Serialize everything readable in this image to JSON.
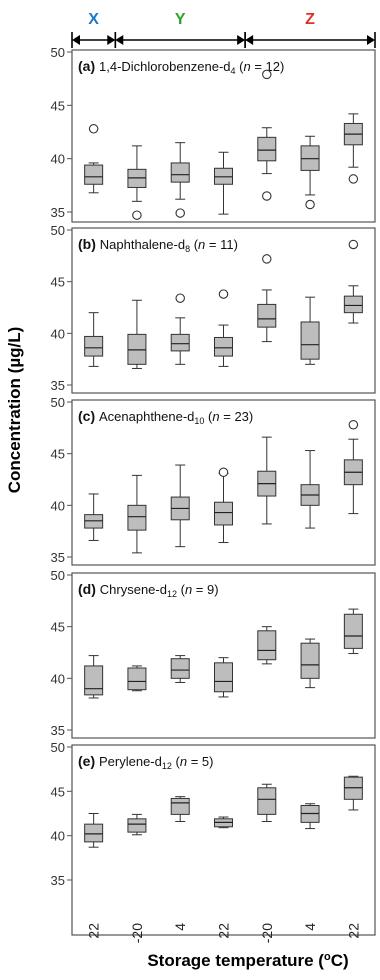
{
  "figure": {
    "ylabel": "Concentration (µg/L)",
    "xlabel": "Storage temperature (°C)",
    "xlabel_display": "Storage temperature (",
    "xlabel_unit_sup": "o",
    "xlabel_unit_tail": "C)",
    "x_tick_labels": [
      "22",
      "-20",
      "4",
      "22",
      "-20",
      "4",
      "22"
    ],
    "groups": [
      {
        "label": "X",
        "color": "#1f78c8",
        "from": 0,
        "to": 0
      },
      {
        "label": "Y",
        "color": "#2aa52a",
        "from": 1,
        "to": 3
      },
      {
        "label": "Z",
        "color": "#e0302a",
        "from": 4,
        "to": 6
      }
    ]
  },
  "chart_data": [
    {
      "type": "box",
      "letter": "(a)",
      "compound": "1,4-Dichlorobenzene-d",
      "subscript": "4",
      "n_prefix": "(",
      "n_var": "n",
      "n_suffix": " = 12)",
      "ylim": [
        35,
        50
      ],
      "yticks": [
        35,
        40,
        45,
        50
      ],
      "boxes": [
        {
          "whislo": 36.8,
          "q1": 37.6,
          "med": 38.3,
          "q3": 39.4,
          "whishi": 39.6,
          "fliers": [
            42.8
          ]
        },
        {
          "whislo": 36.0,
          "q1": 37.3,
          "med": 38.2,
          "q3": 39.0,
          "whishi": 41.2,
          "fliers": [
            34.7
          ]
        },
        {
          "whislo": 36.2,
          "q1": 37.8,
          "med": 38.5,
          "q3": 39.6,
          "whishi": 41.5,
          "fliers": [
            34.9
          ]
        },
        {
          "whislo": 34.8,
          "q1": 37.6,
          "med": 38.3,
          "q3": 39.1,
          "whishi": 40.6,
          "fliers": []
        },
        {
          "whislo": 38.6,
          "q1": 39.8,
          "med": 40.8,
          "q3": 42.0,
          "whishi": 42.9,
          "fliers": [
            47.9,
            36.5
          ]
        },
        {
          "whislo": 36.6,
          "q1": 38.9,
          "med": 40.0,
          "q3": 41.2,
          "whishi": 42.1,
          "fliers": [
            35.7
          ]
        },
        {
          "whislo": 39.2,
          "q1": 41.3,
          "med": 42.3,
          "q3": 43.3,
          "whishi": 44.2,
          "fliers": [
            38.1
          ]
        }
      ]
    },
    {
      "type": "box",
      "letter": "(b)",
      "compound": "Naphthalene-d",
      "subscript": "8",
      "n_prefix": "(",
      "n_var": "n",
      "n_suffix": " = 11)",
      "ylim": [
        35,
        50
      ],
      "yticks": [
        35,
        40,
        45,
        50
      ],
      "boxes": [
        {
          "whislo": 36.8,
          "q1": 37.8,
          "med": 38.6,
          "q3": 39.7,
          "whishi": 42.0,
          "fliers": []
        },
        {
          "whislo": 36.6,
          "q1": 37.0,
          "med": 38.4,
          "q3": 39.9,
          "whishi": 43.2,
          "fliers": []
        },
        {
          "whislo": 37.0,
          "q1": 38.3,
          "med": 39.0,
          "q3": 39.9,
          "whishi": 41.5,
          "fliers": [
            43.4
          ]
        },
        {
          "whislo": 36.8,
          "q1": 37.8,
          "med": 38.6,
          "q3": 39.6,
          "whishi": 40.8,
          "fliers": [
            43.8
          ]
        },
        {
          "whislo": 39.2,
          "q1": 40.6,
          "med": 41.4,
          "q3": 42.8,
          "whishi": 44.2,
          "fliers": [
            47.2
          ]
        },
        {
          "whislo": 37.0,
          "q1": 37.5,
          "med": 38.9,
          "q3": 41.1,
          "whishi": 43.5,
          "fliers": []
        },
        {
          "whislo": 41.0,
          "q1": 42.0,
          "med": 42.7,
          "q3": 43.6,
          "whishi": 44.6,
          "fliers": [
            48.6
          ]
        }
      ]
    },
    {
      "type": "box",
      "letter": "(c)",
      "compound": "Acenaphthene-d",
      "subscript": "10",
      "n_prefix": "(",
      "n_var": "n",
      "n_suffix": " = 23)",
      "ylim": [
        35,
        50
      ],
      "yticks": [
        35,
        40,
        45,
        50
      ],
      "boxes": [
        {
          "whislo": 36.6,
          "q1": 37.8,
          "med": 38.5,
          "q3": 39.1,
          "whishi": 41.1,
          "fliers": []
        },
        {
          "whislo": 35.4,
          "q1": 37.6,
          "med": 38.9,
          "q3": 40.0,
          "whishi": 42.9,
          "fliers": []
        },
        {
          "whislo": 36.0,
          "q1": 38.6,
          "med": 39.7,
          "q3": 40.8,
          "whishi": 43.9,
          "fliers": []
        },
        {
          "whislo": 36.4,
          "q1": 38.1,
          "med": 39.3,
          "q3": 40.3,
          "whishi": 43.1,
          "fliers": [
            43.2
          ]
        },
        {
          "whislo": 38.2,
          "q1": 40.9,
          "med": 42.1,
          "q3": 43.3,
          "whishi": 46.6,
          "fliers": []
        },
        {
          "whislo": 37.8,
          "q1": 40.0,
          "med": 41.0,
          "q3": 42.0,
          "whishi": 45.3,
          "fliers": []
        },
        {
          "whislo": 39.2,
          "q1": 42.0,
          "med": 43.2,
          "q3": 44.4,
          "whishi": 46.4,
          "fliers": [
            47.8
          ]
        }
      ]
    },
    {
      "type": "box",
      "letter": "(d)",
      "compound": "Chrysene-d",
      "subscript": "12",
      "n_prefix": "(",
      "n_var": "n",
      "n_suffix": " = 9)",
      "ylim": [
        35,
        50
      ],
      "yticks": [
        35,
        40,
        45,
        50
      ],
      "boxes": [
        {
          "whislo": 38.1,
          "q1": 38.4,
          "med": 39.0,
          "q3": 41.2,
          "whishi": 42.2,
          "fliers": []
        },
        {
          "whislo": 38.8,
          "q1": 38.9,
          "med": 39.7,
          "q3": 41.0,
          "whishi": 41.2,
          "fliers": []
        },
        {
          "whislo": 39.6,
          "q1": 40.0,
          "med": 40.8,
          "q3": 41.9,
          "whishi": 42.2,
          "fliers": []
        },
        {
          "whislo": 38.2,
          "q1": 38.7,
          "med": 39.7,
          "q3": 41.5,
          "whishi": 42.0,
          "fliers": []
        },
        {
          "whislo": 41.4,
          "q1": 41.8,
          "med": 42.7,
          "q3": 44.6,
          "whishi": 45.0,
          "fliers": []
        },
        {
          "whislo": 39.1,
          "q1": 40.0,
          "med": 41.3,
          "q3": 43.4,
          "whishi": 43.8,
          "fliers": []
        },
        {
          "whislo": 42.4,
          "q1": 42.9,
          "med": 44.1,
          "q3": 46.2,
          "whishi": 46.7,
          "fliers": []
        }
      ]
    },
    {
      "type": "box",
      "letter": "(e)",
      "compound": "Perylene-d",
      "subscript": "12",
      "n_prefix": "(",
      "n_var": "n",
      "n_suffix": " = 5)",
      "ylim": [
        35,
        50
      ],
      "yticks": [
        35,
        40,
        45,
        50
      ],
      "boxes": [
        {
          "whislo": 38.7,
          "q1": 39.3,
          "med": 40.2,
          "q3": 41.3,
          "whishi": 42.5,
          "fliers": []
        },
        {
          "whislo": 40.1,
          "q1": 40.4,
          "med": 41.3,
          "q3": 41.9,
          "whishi": 42.4,
          "fliers": []
        },
        {
          "whislo": 41.6,
          "q1": 42.4,
          "med": 43.7,
          "q3": 44.2,
          "whishi": 44.4,
          "fliers": []
        },
        {
          "whislo": 40.9,
          "q1": 41.0,
          "med": 41.5,
          "q3": 41.9,
          "whishi": 42.1,
          "fliers": []
        },
        {
          "whislo": 41.6,
          "q1": 42.4,
          "med": 44.1,
          "q3": 45.4,
          "whishi": 45.8,
          "fliers": []
        },
        {
          "whislo": 40.8,
          "q1": 41.5,
          "med": 42.5,
          "q3": 43.4,
          "whishi": 43.6,
          "fliers": []
        },
        {
          "whislo": 42.9,
          "q1": 44.1,
          "med": 45.4,
          "q3": 46.6,
          "whishi": 46.7,
          "fliers": []
        }
      ]
    }
  ]
}
